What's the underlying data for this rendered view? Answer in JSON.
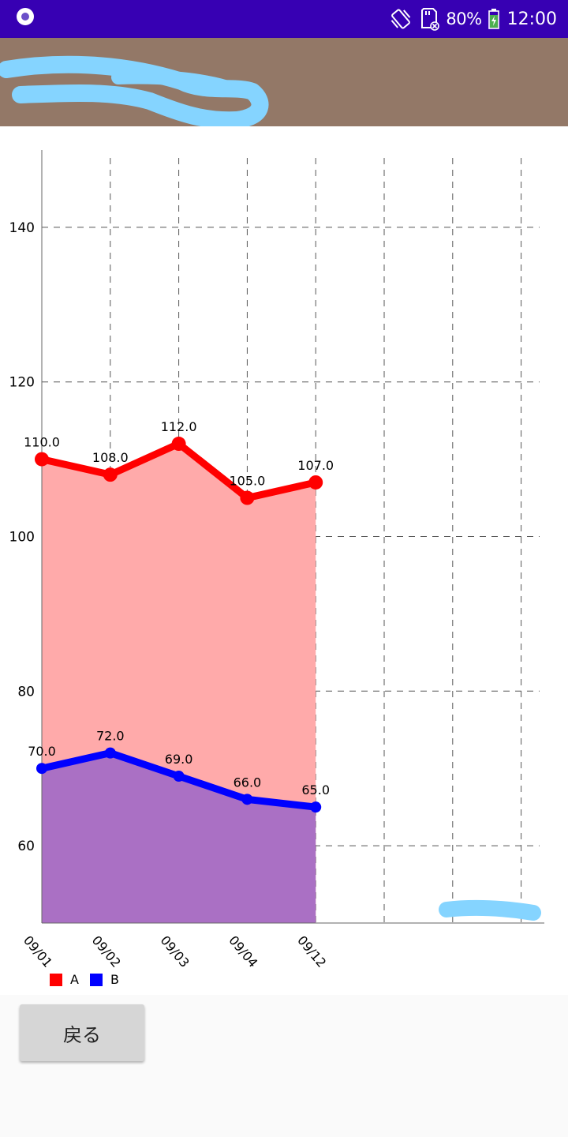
{
  "status_bar": {
    "battery": "80%",
    "time": "12:00",
    "icons": [
      "app-notification-icon",
      "vibrate-icon",
      "sd-card-error-icon",
      "battery-charging-icon"
    ]
  },
  "app_bar": {
    "title_redacted": true,
    "color": "#937867"
  },
  "chart_data": {
    "type": "area",
    "categories": [
      "09/01",
      "09/02",
      "09/03",
      "09/04",
      "09/12"
    ],
    "series": [
      {
        "name": "A",
        "values": [
          110.0,
          108.0,
          112.0,
          105.0,
          107.0
        ],
        "color": "#ff0000",
        "fill": "#ffaaaa"
      },
      {
        "name": "B",
        "values": [
          70.0,
          72.0,
          69.0,
          66.0,
          65.0
        ],
        "color": "#0000ff",
        "fill": "#aa70c4"
      }
    ],
    "y_ticks": [
      60,
      80,
      100,
      120,
      140
    ],
    "ylim": [
      50,
      150
    ],
    "x_slots": 8,
    "grid": true,
    "legend": "bottom-left",
    "data_labels": [
      [
        "110.0",
        "108.0",
        "112.0",
        "105.0",
        "107.0"
      ],
      [
        "70.0",
        "72.0",
        "69.0",
        "66.0",
        "65.0"
      ]
    ]
  },
  "legend": [
    {
      "label": "A",
      "color": "#ff0000"
    },
    {
      "label": "B",
      "color": "#0000ff"
    }
  ],
  "buttons": {
    "back_label": "戻る"
  }
}
